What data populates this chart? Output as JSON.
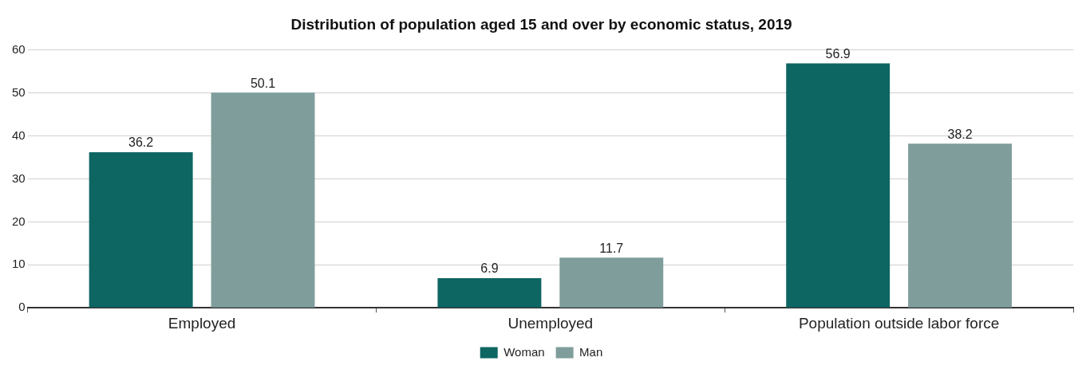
{
  "chart_data": {
    "type": "bar",
    "title": "Distribution of population aged 15 and over by economic status, 2019",
    "categories": [
      "Employed",
      "Unemployed",
      "Population outside labor force"
    ],
    "series": [
      {
        "name": "Woman",
        "color": "#0e6663",
        "values": [
          36.2,
          6.9,
          56.9
        ]
      },
      {
        "name": "Man",
        "color": "#7f9e9b",
        "values": [
          50.1,
          11.7,
          38.2
        ]
      }
    ],
    "ylim": [
      0,
      60
    ],
    "yticks": [
      0,
      10,
      20,
      30,
      40,
      50,
      60
    ],
    "grid": "y",
    "legend": "bottom",
    "data_labels": true
  }
}
